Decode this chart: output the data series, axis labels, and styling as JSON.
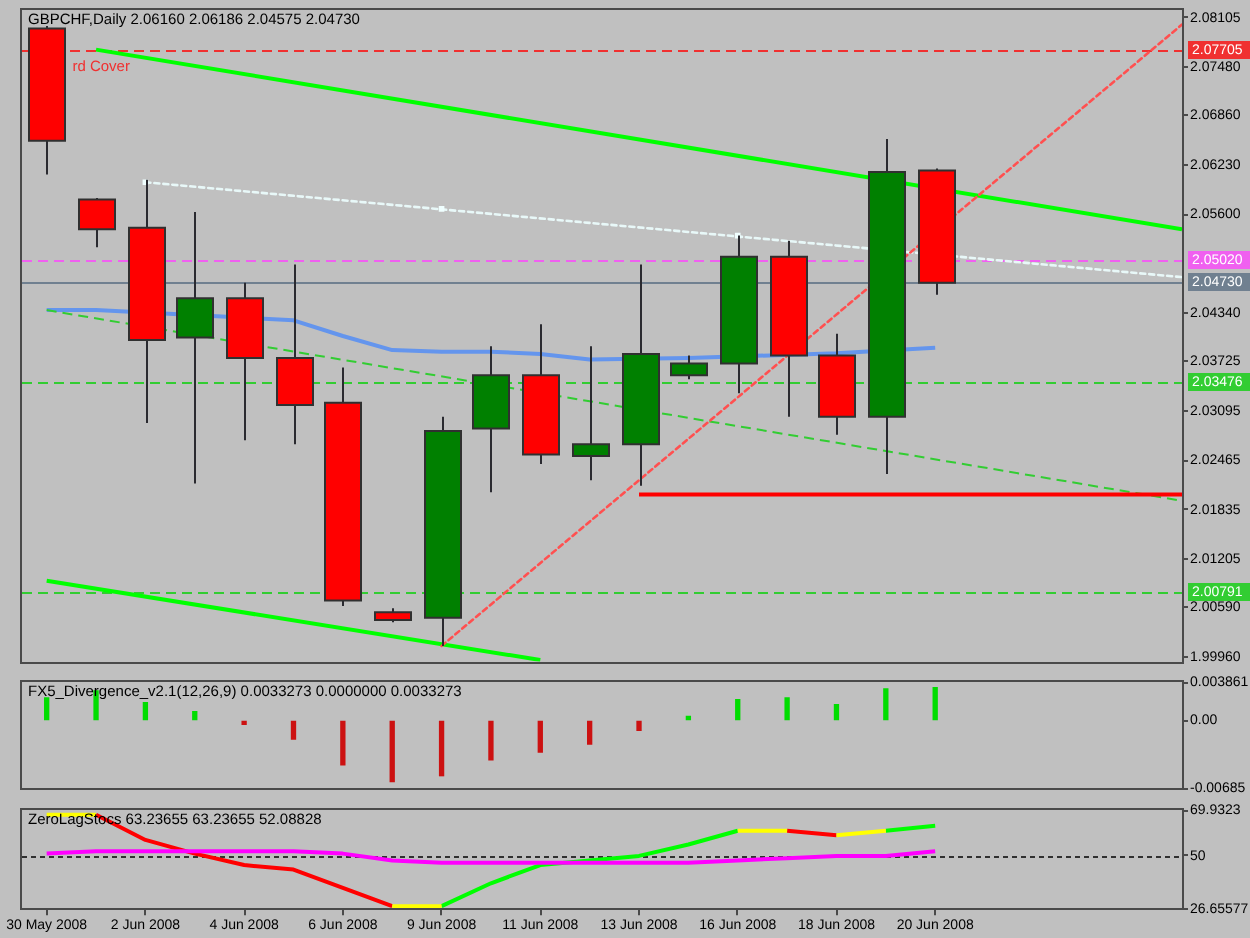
{
  "chart_data": [
    {
      "type": "candlestick",
      "title": "GBPCHF,Daily 2.06160 2.06186 2.04575 2.04730",
      "categories": [
        null,
        null,
        null,
        null,
        null,
        null,
        null,
        null,
        null,
        null,
        null,
        null,
        null,
        null,
        null,
        null,
        null,
        null,
        null,
        null,
        null,
        null,
        null,
        null
      ],
      "ohlc": [
        [
          2.0797,
          2.08,
          2.0611,
          2.0654
        ],
        [
          2.0579,
          2.0581,
          2.0518,
          2.0541
        ],
        [
          2.0543,
          2.0604,
          2.0294,
          2.04
        ],
        [
          2.0403,
          2.0563,
          2.0217,
          2.0453
        ],
        [
          2.0453,
          2.0473,
          2.0272,
          2.0377
        ],
        [
          2.0377,
          2.0496,
          2.0267,
          2.0317
        ],
        [
          2.032,
          2.0365,
          2.0061,
          2.0068
        ],
        [
          2.0053,
          2.0058,
          2.004,
          2.0043
        ],
        [
          2.0046,
          2.0302,
          2.001,
          2.0284
        ],
        [
          2.0287,
          2.0392,
          2.0206,
          2.0355
        ],
        [
          2.0355,
          2.042,
          2.0242,
          2.0254
        ],
        [
          2.0252,
          2.0392,
          2.0221,
          2.0267
        ],
        [
          2.0267,
          2.0496,
          2.0214,
          2.0382
        ],
        [
          2.0355,
          2.038,
          2.035,
          2.037
        ],
        [
          2.037,
          2.0533,
          2.0332,
          2.0506
        ],
        [
          2.0506,
          2.0526,
          2.0302,
          2.038
        ],
        [
          2.038,
          2.0408,
          2.0279,
          2.0302
        ],
        [
          2.0302,
          2.0656,
          2.0229,
          2.0614
        ],
        [
          2.0616,
          2.06186,
          2.04575,
          2.0473
        ],
        null,
        null,
        null,
        null,
        null
      ],
      "colors": [
        "#ff0000",
        "#ff0000",
        "#ff0000",
        "#008000",
        "#ff0000",
        "#ff0000",
        "#ff0000",
        "#ff0000",
        "#008000",
        "#008000",
        "#ff0000",
        "#008000",
        "#008000",
        "#008000",
        "#008000",
        "#ff0000",
        "#ff0000",
        "#008000",
        "#ff0000",
        null,
        null,
        null,
        null,
        null
      ],
      "series": [
        {
          "type": "line",
          "color": "#6495ed",
          "values": [
            2.0438,
            2.0438,
            null,
            null,
            null,
            2.0425,
            2.0405,
            2.0387,
            2.0385,
            2.0385,
            2.0382,
            2.0375,
            null,
            2.0377,
            null,
            null,
            2.0383,
            null,
            2.039,
            null,
            null,
            null,
            null,
            null
          ]
        },
        {
          "type": "line",
          "color": "#00ff00",
          "values": [
            null,
            2.077,
            null,
            null,
            null,
            null,
            null,
            null,
            null,
            null,
            null,
            null,
            null,
            null,
            null,
            null,
            null,
            null,
            null,
            null,
            null,
            null,
            null,
            2.0541
          ]
        },
        {
          "type": "line",
          "color": "#00ff00",
          "values": [
            2.0093,
            null,
            null,
            null,
            null,
            null,
            null,
            null,
            null,
            null,
            1.9992,
            null,
            null,
            null,
            null,
            null,
            null,
            null,
            null,
            null,
            null,
            null,
            null,
            null
          ]
        },
        {
          "type": "line",
          "color": "#e8f8f8",
          "line_style": "dotted",
          "values": [
            null,
            null,
            2.0601,
            null,
            null,
            null,
            null,
            null,
            null,
            null,
            null,
            null,
            null,
            null,
            null,
            null,
            null,
            null,
            null,
            null,
            null,
            null,
            null,
            2.048
          ]
        },
        {
          "type": "line",
          "color": "#32cd32",
          "line_style": "dashed",
          "values": [
            2.0438,
            null,
            null,
            null,
            null,
            null,
            null,
            null,
            null,
            null,
            null,
            null,
            null,
            null,
            null,
            null,
            null,
            null,
            null,
            null,
            null,
            null,
            null,
            2.0195
          ]
        },
        {
          "type": "line",
          "color": "#ff5050",
          "line_style": "dotted",
          "values": [
            null,
            null,
            null,
            null,
            null,
            null,
            null,
            null,
            2.001,
            null,
            null,
            null,
            null,
            null,
            null,
            null,
            null,
            null,
            null,
            null,
            null,
            null,
            null,
            2.0802
          ]
        },
        {
          "type": "line",
          "color": "#ff0000",
          "values": [
            null,
            null,
            null,
            null,
            null,
            null,
            null,
            null,
            null,
            null,
            null,
            null,
            2.0203,
            null,
            null,
            null,
            null,
            null,
            null,
            null,
            null,
            null,
            null,
            2.0203
          ]
        },
        {
          "type": "scatter",
          "color": "#f0ffff",
          "marker": "square",
          "values": [
            null,
            null,
            2.0601,
            null,
            null,
            null,
            null,
            null,
            2.0567,
            null,
            null,
            null,
            null,
            null,
            2.0533,
            null,
            null,
            null,
            null,
            null,
            null,
            null,
            null,
            null
          ]
        }
      ],
      "ylim": [
        1.999,
        2.082
      ],
      "yticks": [
        2.08105,
        {
          "value": 2.0748,
          "label": "2.07480"
        },
        {
          "value": 2.0686,
          "label": "2.06860"
        },
        {
          "value": 2.0623,
          "label": "2.06230"
        },
        {
          "value": 2.056,
          "label": "2.05600"
        },
        {
          "value": 2.0434,
          "label": "2.04340"
        },
        2.03725,
        2.03095,
        2.02465,
        2.01835,
        2.01205,
        {
          "value": 2.0059,
          "label": "2.00590"
        },
        {
          "value": 1.9996,
          "label": "1.99960"
        }
      ],
      "ref_lines": [
        {
          "axis": "y",
          "value": 2.07705,
          "label": "2.07705",
          "color": "#f03030",
          "line_style": "dashed"
        },
        {
          "axis": "y",
          "value": 2.0502,
          "label": "2.05020",
          "color": "#f060f0",
          "line_style": "dashed"
        },
        {
          "axis": "y",
          "value": 2.0473,
          "label": "2.04730",
          "color": "#708090",
          "line_style": "solid"
        },
        {
          "axis": "y",
          "value": 2.03476,
          "label": "2.03476",
          "color": "#32cd32",
          "line_style": "dashed"
        },
        {
          "axis": "y",
          "value": 2.00791,
          "label": "2.00791",
          "color": "#32cd32",
          "line_style": "dashed"
        }
      ],
      "annotations": [
        {
          "text": "rd Cover",
          "y": 2.07705
        }
      ],
      "tick_labels": "y"
    },
    {
      "type": "bar",
      "title": "FX5_Divergence_v2.1(12,26,9) 0.0033273 0.0000000 0.0033273",
      "categories": [
        null,
        null,
        null,
        null,
        null,
        null,
        null,
        null,
        null,
        null,
        null,
        null,
        null,
        null,
        null,
        null,
        null,
        null,
        null,
        null,
        null,
        null,
        null,
        null
      ],
      "values": [
        0.0023,
        0.003,
        0.0018,
        0.0009,
        -0.0004,
        -0.0019,
        -0.0045,
        -0.0062,
        -0.0056,
        -0.004,
        -0.0032,
        -0.0024,
        -0.001,
        0.0004,
        0.0021,
        0.0023,
        0.0016,
        0.0032,
        0.0033273,
        null,
        null,
        null,
        null,
        null
      ],
      "colors": [
        "#00dd00",
        "#00dd00",
        "#00dd00",
        "#00dd00",
        "#cc1111",
        "#cc1111",
        "#cc1111",
        "#cc1111",
        "#cc1111",
        "#cc1111",
        "#cc1111",
        "#cc1111",
        "#cc1111",
        "#00dd00",
        "#00dd00",
        "#00dd00",
        "#00dd00",
        "#00dd00",
        "#00dd00",
        null,
        null,
        null,
        null,
        null
      ],
      "ylim": [
        -0.00685,
        0.003861
      ],
      "yticks": [
        0.003861,
        {
          "value": 0,
          "label": "0.00"
        },
        -0.00685
      ],
      "tick_labels": "y"
    },
    {
      "type": "line",
      "title": "ZeroLagStocs 63.23655 63.23655 52.08828",
      "categories": [
        "30 May 2008",
        null,
        "2 Jun 2008",
        null,
        "4 Jun 2008",
        null,
        "6 Jun 2008",
        null,
        "9 Jun 2008",
        null,
        "11 Jun 2008",
        null,
        "13 Jun 2008",
        null,
        "16 Jun 2008",
        null,
        "18 Jun 2008",
        null,
        "20 Jun 2008",
        null,
        null,
        null,
        null,
        null
      ],
      "series": [
        {
          "color": "#ff0000",
          "values": [
            null,
            68,
            57,
            51,
            46,
            44,
            36,
            28,
            null,
            null,
            null,
            null,
            null,
            null,
            null,
            61,
            59,
            null,
            null,
            null,
            null,
            null,
            null,
            null
          ]
        },
        {
          "color": "#00ff00",
          "values": [
            null,
            null,
            null,
            null,
            null,
            null,
            null,
            null,
            28,
            38,
            46,
            48,
            50,
            55,
            61,
            null,
            null,
            61,
            63.23655,
            null,
            null,
            null,
            null,
            null
          ]
        },
        {
          "color": "#ffff00",
          "values": [
            68,
            68,
            null,
            null,
            null,
            null,
            null,
            28,
            28,
            null,
            null,
            null,
            null,
            null,
            61,
            61,
            null,
            null,
            null,
            null,
            null,
            null,
            null,
            null
          ]
        },
        {
          "color": "#ffff00",
          "values": [
            null,
            null,
            null,
            null,
            null,
            null,
            null,
            null,
            null,
            null,
            null,
            null,
            null,
            null,
            null,
            null,
            59,
            61,
            null,
            null,
            null,
            null,
            null,
            null
          ]
        },
        {
          "color": "#ff00ff",
          "values": [
            51,
            52,
            52,
            52,
            52,
            52,
            51,
            48,
            47,
            47,
            47,
            47,
            47,
            47,
            48,
            49,
            50,
            50,
            52.08828,
            null,
            null,
            null,
            null,
            null
          ]
        }
      ],
      "ylim": [
        26.65577,
        69.9323
      ],
      "yticks": [
        69.9323,
        50,
        26.65577
      ],
      "ref_lines": [
        {
          "axis": "y",
          "value": 50,
          "color": "#303030",
          "line_style": "dotted"
        }
      ]
    }
  ]
}
